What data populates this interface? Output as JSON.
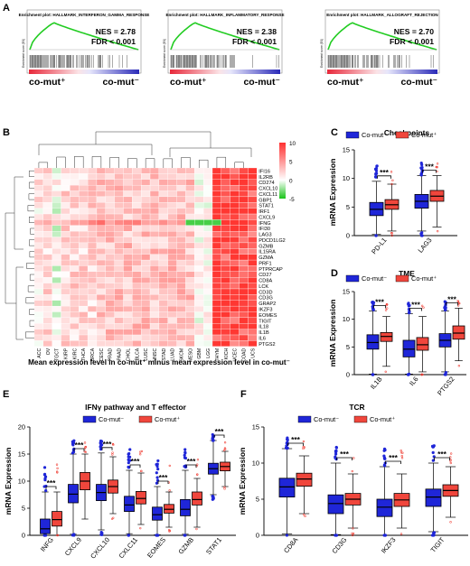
{
  "panels": {
    "A": {
      "letter": "A"
    },
    "B": {
      "letter": "B"
    },
    "C": {
      "letter": "C"
    },
    "D": {
      "letter": "D"
    },
    "E": {
      "letter": "E"
    },
    "F": {
      "letter": "F"
    }
  },
  "colors": {
    "neg": "#1f26d8",
    "pos": "#f0463c",
    "curve": "#22cc22"
  },
  "gsea": [
    {
      "title": "Enrichment plot: HALLMARK_INTERFERON_GAMMA_RESPONSE",
      "nes": "NES = 2.78",
      "fdr": "FDR < 0.001",
      "ylabel": "Enrichment score (ES)",
      "left": "co-mut⁺",
      "right": "co-mut⁻"
    },
    {
      "title": "Enrichment plot: HALLMARK_INFLAMMATORY_RESPONSE",
      "nes": "NES = 2.38",
      "fdr": "FDR < 0.001",
      "ylabel": "Enrichment score (ES)",
      "left": "co-mut⁺",
      "right": "co-mut⁻"
    },
    {
      "title": "Enrichment plot: HALLMARK_ALLOGRAFT_REJECTION",
      "nes": "NES = 2.70",
      "fdr": "FDR < 0.001",
      "ylabel": "Enrichment score (ES)",
      "left": "co-mut⁺",
      "right": "co-mut⁻"
    }
  ],
  "heatmap": {
    "genes": [
      "IFI16",
      "IL2RB",
      "CD274",
      "CXCL10",
      "CXCL11",
      "GBP1",
      "STAT1",
      "IRF1",
      "CXCL9",
      "IFNG",
      "IFI30",
      "LAG3",
      "PDCD1LG2",
      "GZMB",
      "IL15RA",
      "GZMA",
      "PRF1",
      "PTPRCAP",
      "CD27",
      "CD8A",
      "LCK",
      "CD3D",
      "CD3G",
      "GRAP2",
      "IKZF3",
      "EOMES",
      "TIGIT",
      "IL18",
      "IL1B",
      "IL6",
      "PTGS2"
    ],
    "cancers": [
      "ACC",
      "OV",
      "TGCT",
      "KIRP",
      "KIRC",
      "THCA",
      "BRCA",
      "CESC",
      "PRAD",
      "PAAD",
      "CHOL",
      "BLCA",
      "LUSC",
      "HNSC",
      "STAD",
      "LUAD",
      "SKCM",
      "MESO",
      "GBM",
      "LGG",
      "THYM",
      "KICH",
      "UCEC",
      "COAD",
      "UCS"
    ],
    "legend_ticks": [
      "10",
      "5",
      "0",
      "-5"
    ],
    "xlabel": "Mean expression level in co-mut⁺ minus mean expression level in co-mut⁻"
  },
  "chart_data": [
    {
      "type": "box",
      "title": "Checkpoints",
      "ylabel": "mRNA Expression",
      "categories": [
        "PD-L1",
        "LAG3"
      ],
      "ylim": [
        0,
        15
      ],
      "yticks": [
        "0",
        "5",
        "10",
        "15"
      ],
      "series": [
        {
          "name": "Co-mut⁻",
          "median": [
            4.6,
            6.0
          ],
          "q1": [
            3.5,
            4.8
          ],
          "q3": [
            5.8,
            7.2
          ],
          "min": [
            0.2,
            0.8
          ],
          "max": [
            9.5,
            10.5
          ]
        },
        {
          "name": "Co-mut⁺",
          "median": [
            5.4,
            6.9
          ],
          "q1": [
            4.6,
            6.0
          ],
          "q3": [
            6.3,
            7.9
          ],
          "min": [
            0.8,
            1.5
          ],
          "max": [
            9.0,
            10.5
          ]
        }
      ],
      "significance": [
        "***",
        "***"
      ]
    },
    {
      "type": "box",
      "title": "TME",
      "ylabel": "mRNA Expression",
      "categories": [
        "IL1B",
        "IL6",
        "PTGS2"
      ],
      "ylim": [
        0,
        15
      ],
      "yticks": [
        "0",
        "5",
        "10",
        "15"
      ],
      "series": [
        {
          "name": "Co-mut⁻",
          "median": [
            5.8,
            4.6,
            6.2
          ],
          "q1": [
            4.6,
            3.2,
            5.0
          ],
          "q3": [
            7.2,
            6.2,
            7.4
          ],
          "min": [
            0.1,
            0.1,
            0.5
          ],
          "max": [
            11.5,
            11.0,
            11.5
          ]
        },
        {
          "name": "Co-mut⁺",
          "median": [
            6.9,
            5.4,
            7.5
          ],
          "q1": [
            6.0,
            4.4,
            6.4
          ],
          "q3": [
            7.6,
            6.7,
            8.8
          ],
          "min": [
            1.5,
            0.5,
            2.5
          ],
          "max": [
            10.5,
            10.5,
            12.0
          ]
        }
      ],
      "significance": [
        "***",
        "***",
        "***"
      ]
    },
    {
      "type": "box",
      "title": "IFNγ pathway and T effector",
      "ylabel": "mRNA Expression",
      "categories": [
        "INFG",
        "CXCL9",
        "CXCL10",
        "CXLC11",
        "EOMES",
        "GZMB",
        "STAT1"
      ],
      "ylim": [
        0,
        20
      ],
      "yticks": [
        "0",
        "5",
        "10",
        "15",
        "20"
      ],
      "series": [
        {
          "name": "Co-mut⁻",
          "median": [
            1.2,
            7.6,
            7.9,
            5.6,
            3.8,
            4.8,
            12.3
          ],
          "q1": [
            0.3,
            6.0,
            6.4,
            4.4,
            2.8,
            3.6,
            11.3
          ],
          "q3": [
            3.0,
            9.4,
            9.4,
            7.2,
            5.2,
            6.6,
            13.3
          ],
          "min": [
            0.0,
            0.2,
            1.0,
            0.3,
            0.1,
            0.2,
            7.5
          ],
          "max": [
            8.0,
            15.0,
            15.2,
            12.0,
            9.0,
            12.0,
            17.5
          ]
        },
        {
          "name": "Co-mut⁺",
          "median": [
            2.9,
            10.0,
            9.0,
            6.8,
            4.8,
            6.6,
            12.7
          ],
          "q1": [
            1.7,
            8.4,
            7.8,
            5.8,
            4.1,
            5.6,
            11.9
          ],
          "q3": [
            4.4,
            11.6,
            10.2,
            8.1,
            5.7,
            8.0,
            13.5
          ],
          "min": [
            0.0,
            3.0,
            4.0,
            2.0,
            1.5,
            1.5,
            9.0
          ],
          "max": [
            8.0,
            15.0,
            14.5,
            11.5,
            8.0,
            10.5,
            15.5
          ]
        }
      ],
      "significance": [
        "***",
        "***",
        "***",
        "***",
        "***",
        "***",
        "***"
      ]
    },
    {
      "type": "box",
      "title": "TCR",
      "ylabel": "mRNA Expression",
      "categories": [
        "CD8A",
        "CD3G",
        "IKZF3",
        "TIGIT"
      ],
      "ylim": [
        0,
        15
      ],
      "yticks": [
        "0",
        "5",
        "10",
        "15"
      ],
      "series": [
        {
          "name": "Co-mut⁻",
          "median": [
            6.7,
            4.4,
            3.9,
            5.3
          ],
          "q1": [
            5.3,
            3.0,
            2.6,
            4.0
          ],
          "q3": [
            7.9,
            5.6,
            5.0,
            6.4
          ],
          "min": [
            0.2,
            0.1,
            0.0,
            0.5
          ],
          "max": [
            12.0,
            10.0,
            9.5,
            10.0
          ]
        },
        {
          "name": "Co-mut⁺",
          "median": [
            7.8,
            5.0,
            4.9,
            6.2
          ],
          "q1": [
            6.8,
            4.2,
            4.0,
            5.4
          ],
          "q3": [
            8.6,
            5.8,
            5.8,
            7.0
          ],
          "min": [
            3.0,
            1.0,
            1.0,
            2.5
          ],
          "max": [
            11.0,
            8.5,
            8.5,
            9.5
          ]
        }
      ],
      "significance": [
        "***",
        "***",
        "***",
        "***"
      ]
    }
  ]
}
